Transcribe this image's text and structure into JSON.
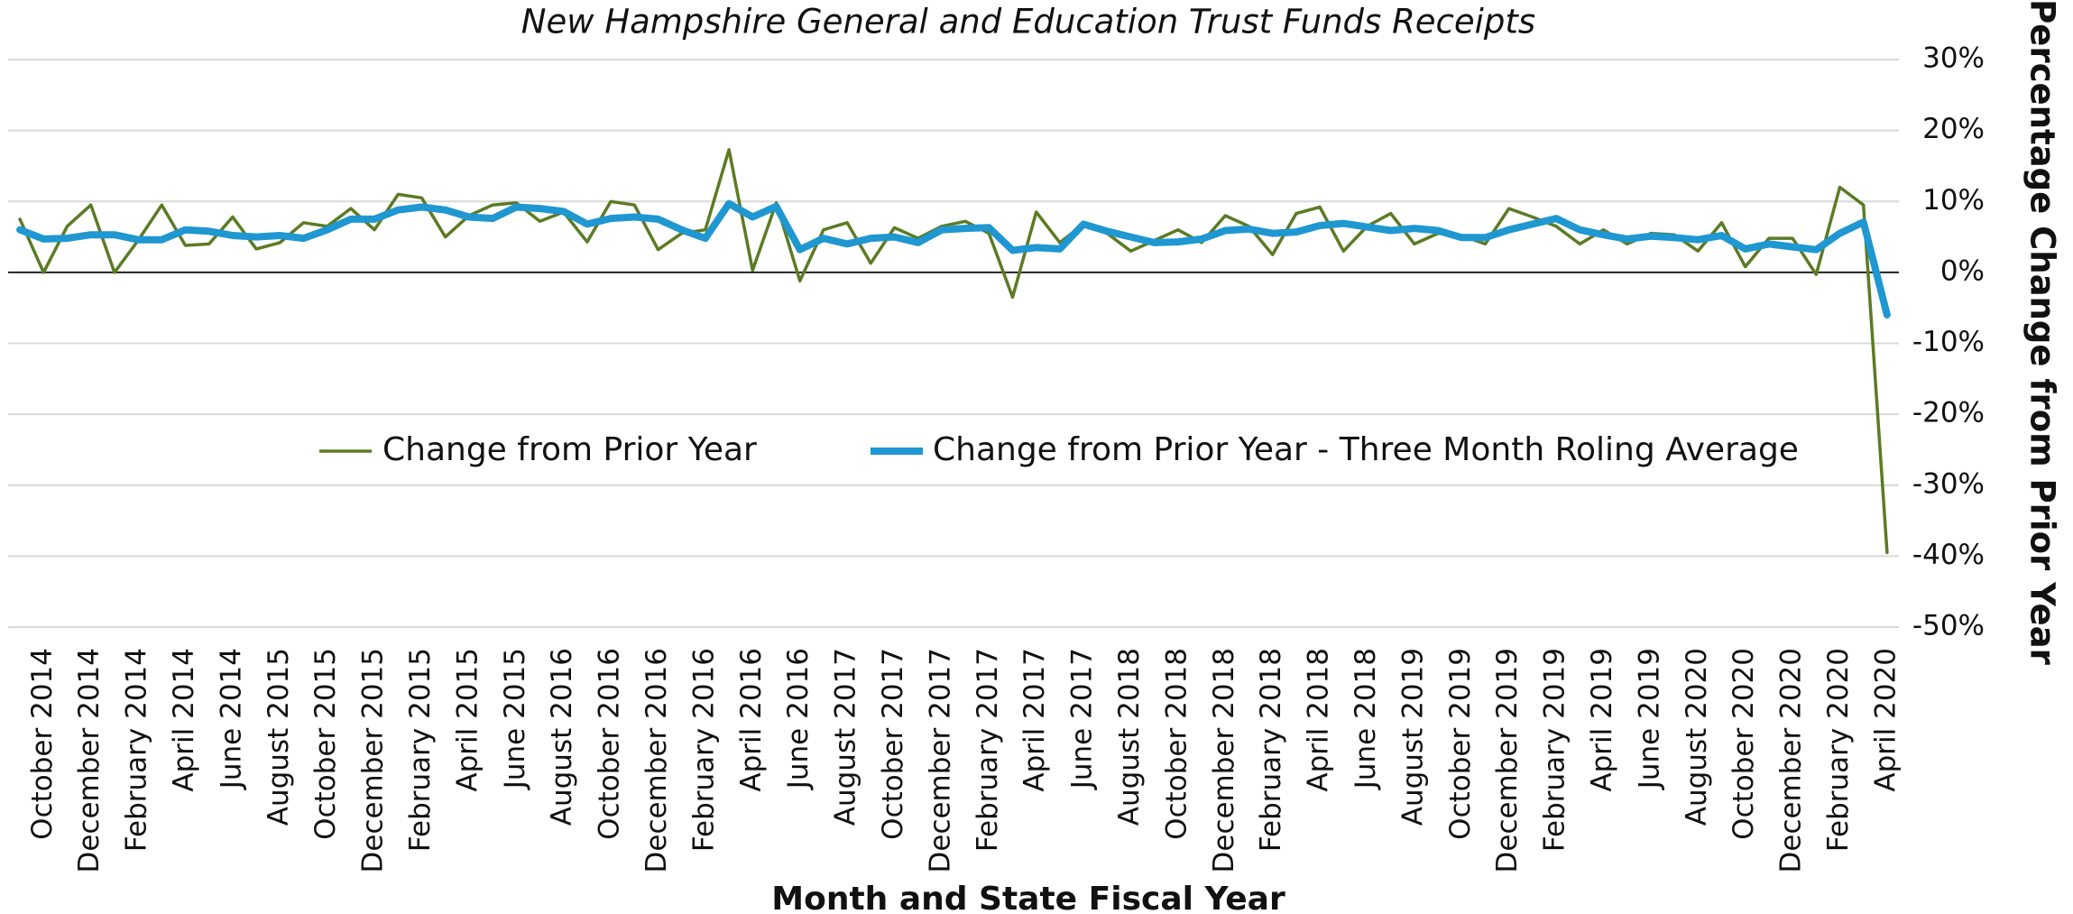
{
  "chart_data": {
    "type": "line",
    "title": "New Hampshire General and Education Trust Funds Receipts",
    "x_label": "Month and State Fiscal Year",
    "y_label": "Percentage Change from Prior Year",
    "categories": [
      null,
      "October 2014",
      null,
      "December 2014",
      null,
      "February 2014",
      null,
      "April 2014",
      null,
      "June 2014",
      null,
      "August 2015",
      null,
      "October 2015",
      null,
      "December 2015",
      null,
      "February 2015",
      null,
      "April 2015",
      null,
      "June 2015",
      null,
      "August 2016",
      null,
      "October 2016",
      null,
      "December 2016",
      null,
      "February 2016",
      null,
      "April 2016",
      null,
      "June 2016",
      null,
      "August 2017",
      null,
      "October 2017",
      null,
      "December 2017",
      null,
      "February 2017",
      null,
      "April 2017",
      null,
      "June 2017",
      null,
      "August 2018",
      null,
      "October 2018",
      null,
      "December 2018",
      null,
      "February 2018",
      null,
      "April 2018",
      null,
      "June 2018",
      null,
      "August 2019",
      null,
      "October 2019",
      null,
      "December 2019",
      null,
      "February 2019",
      null,
      "April 2019",
      null,
      "June 2019",
      null,
      "August 2020",
      null,
      "October 2020",
      null,
      "December 2020",
      null,
      "February 2020",
      null,
      "April 2020"
    ],
    "series": [
      {
        "name": "Change from Prior Year",
        "color": "#5b7b24",
        "values": [
          7.5,
          0,
          6.5,
          9.5,
          0,
          4.5,
          9.5,
          3.8,
          4,
          7.8,
          3.3,
          4.2,
          7,
          6.5,
          9,
          6,
          11,
          10.5,
          5,
          8,
          9.5,
          9.8,
          7.2,
          8.5,
          4.3,
          10,
          9.5,
          3.2,
          5.5,
          6,
          17.3,
          0.3,
          9.8,
          -1.2,
          6,
          7,
          1.3,
          6.3,
          4.8,
          6.5,
          7.2,
          5.5,
          -3.5,
          8.5,
          4.2,
          6.8,
          5.5,
          3,
          4.5,
          6,
          4.2,
          8,
          6.5,
          2.5,
          8.3,
          9.2,
          3,
          6.5,
          8.3,
          4,
          5.5,
          5.2,
          4,
          9,
          7.8,
          6.5,
          4,
          6,
          4,
          5.5,
          5.3,
          3,
          7,
          0.8,
          4.8,
          4.8,
          -0.3,
          12,
          9.5,
          -39.5
        ]
      },
      {
        "name": "Change from Prior Year - Three Month Roling Average",
        "color": "#1f97d1",
        "values": [
          6,
          4.7,
          4.8,
          5.3,
          5.3,
          4.6,
          4.6,
          6,
          5.8,
          5.2,
          5,
          5.2,
          4.8,
          6,
          7.5,
          7.5,
          8.8,
          9.2,
          8.8,
          7.8,
          7.6,
          9.2,
          9,
          8.6,
          6.8,
          7.6,
          7.8,
          7.5,
          6,
          4.8,
          9.7,
          7.8,
          9.3,
          3.2,
          4.8,
          4,
          4.8,
          5,
          4.2,
          6,
          6.2,
          6.3,
          3.1,
          3.5,
          3.3,
          6.8,
          5.8,
          5,
          4.2,
          4.3,
          4.7,
          5.9,
          6.1,
          5.5,
          5.7,
          6.6,
          6.9,
          6.4,
          5.9,
          6.2,
          5.9,
          4.9,
          4.9,
          6,
          6.8,
          7.6,
          6,
          5.3,
          4.7,
          5.1,
          4.9,
          4.6,
          5.2,
          3.3,
          4,
          3.6,
          3.2,
          5.5,
          7.1,
          -6
        ]
      }
    ],
    "ylim": [
      -50,
      30
    ],
    "yticks": [
      {
        "value": 30,
        "label": "30%"
      },
      {
        "value": 20,
        "label": "20%"
      },
      {
        "value": 10,
        "label": "10%"
      },
      {
        "value": 0,
        "label": "0%"
      },
      {
        "value": -10,
        "label": "-10%"
      },
      {
        "value": -20,
        "label": "-20%"
      },
      {
        "value": -30,
        "label": "-30%"
      },
      {
        "value": -40,
        "label": "-40%"
      },
      {
        "value": -50,
        "label": "-50%"
      }
    ],
    "grid": true
  }
}
